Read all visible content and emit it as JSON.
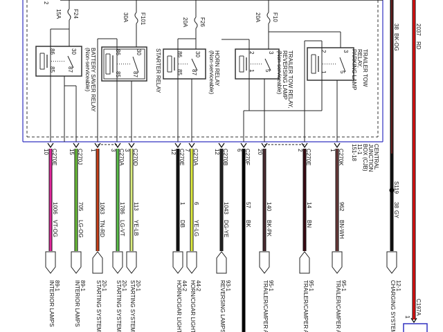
{
  "top_fragment": "2",
  "fuses": [
    {
      "id": "F24",
      "rating": "15A"
    },
    {
      "id": "F101",
      "rating": "30A"
    },
    {
      "id": "F26",
      "rating": "20A"
    },
    {
      "id": "F10",
      "rating": "20A"
    }
  ],
  "relays": [
    {
      "name": [
        "BATTERY SAVER RELAY",
        "(Non-serviceable)"
      ],
      "pins": [
        "86",
        "30",
        "85",
        "87"
      ]
    },
    {
      "name": [
        "STARTER RELAY"
      ],
      "pins": [
        "86",
        "30",
        "85",
        "87"
      ]
    },
    {
      "name": [
        "HORN RELAY",
        "(Non-serviceable)"
      ],
      "pins": [
        "86",
        "30",
        "85",
        "87"
      ]
    },
    {
      "name": [
        "TRAILER TOW RELAY,",
        "REVERSING LAMP",
        "(Non-serviceable)"
      ],
      "pins": [
        "2",
        "3",
        "1",
        "5"
      ]
    },
    {
      "name": [
        "TRAILER TOW",
        "RELAY,",
        "PARKING LAMP"
      ],
      "pins": [
        "2",
        "3",
        "1",
        "5"
      ]
    }
  ],
  "junction_box": [
    "CENTRAL",
    "JUNCTION",
    "BOX (CJB)",
    "11-1",
    "151-18"
  ],
  "wires": [
    {
      "connector": "C270E",
      "pin": "10",
      "circuit": "1006",
      "color_code": "VT-OG",
      "color": "#e0289c",
      "dest_code": "89-1",
      "dest": "INTERIOR LAMPS"
    },
    {
      "connector": "C270J",
      "pin": "15",
      "circuit": "705",
      "color_code": "LG-OG",
      "color": "#6cbf3a",
      "dest_code": "89-1",
      "dest": "INTERIOR LAMPS"
    },
    {
      "connector": "",
      "pin": "1",
      "circuit": "1063",
      "color_code": "TN-RD",
      "color": "#c8401a",
      "dest_code": "20-1",
      "dest": "STARTING SYSTEM"
    },
    {
      "connector": "C270A",
      "pin": "3",
      "circuit": "1786",
      "color_code": "LG-VT",
      "color": "#5cc04a",
      "dest_code": "20-1",
      "dest": "STARTING SYSTEM"
    },
    {
      "connector": "C270D",
      "pin": "3",
      "circuit": "113",
      "color_code": "YE-LB",
      "color": "#dcef80",
      "dest_code": "20-1",
      "dest": "STARTING SYSTEM"
    },
    {
      "connector": "C270E",
      "pin": "12",
      "circuit": "1",
      "color_code": "DB",
      "color": "#111111",
      "dest_code": "44-2",
      "dest": "HORN/CIGAR LIGHT"
    },
    {
      "connector": "C270A",
      "pin": "7",
      "circuit": "6",
      "color_code": "YE-LG",
      "color": "#e2f040",
      "dest_code": "44-2",
      "dest": "HORN/CIGAR LIGHT"
    },
    {
      "connector": "C270B",
      "pin": "12",
      "circuit": "1043",
      "color_code": "DG-YE",
      "color": "#222222",
      "dest_code": "93-1",
      "dest": "REVERSING LAMPS"
    },
    {
      "connector": "C270F",
      "pin": "6",
      "circuit": "57",
      "color_code": "BK",
      "color": "#000000",
      "dest_code": "",
      "dest": ""
    },
    {
      "connector": "",
      "pin": "20",
      "circuit": "140",
      "color_code": "BK-PK",
      "color": "#4a2a30",
      "dest_code": "95-1",
      "dest": "TRAILER/CAMPER A"
    },
    {
      "connector": "C270E",
      "pin": "2",
      "circuit": "14",
      "color_code": "BN",
      "color": "#3a0a12",
      "dest_code": "95-1",
      "dest": "TRAILER/CAMPER A"
    },
    {
      "connector": "C270K",
      "pin": "1",
      "circuit": "962",
      "color_code": "BN-WH",
      "color": "#6a3a3a",
      "dest_code": "95-1",
      "dest": "TRAILER/CAMPER A"
    }
  ],
  "charging": {
    "top_circuit": "38",
    "top_color_code": "BK-OG",
    "splice": "S119",
    "circuit": "38",
    "color_code": "GY",
    "dest_code": "12-1",
    "dest": "CHARGING SYSTEM"
  },
  "battery_feed": {
    "circuit": "2037",
    "color_code": "RD",
    "connector": "C197A",
    "pin": "1",
    "color": "#e01010"
  },
  "colors": {
    "cjb_border": "#3030c0"
  }
}
